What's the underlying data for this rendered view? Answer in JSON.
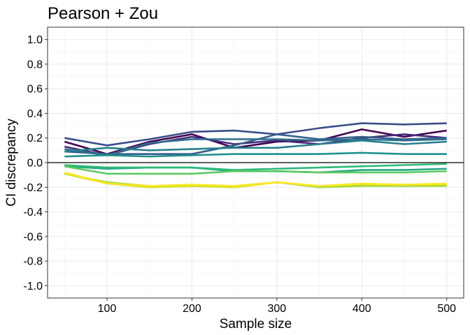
{
  "chart_data": {
    "type": "line",
    "title": "Pearson + Zou",
    "xlabel": "Sample size",
    "ylabel": "CI discrepancy",
    "xlim": [
      30,
      520
    ],
    "ylim": [
      -1.1,
      1.1
    ],
    "x_ticks": [
      100,
      200,
      300,
      400,
      500
    ],
    "x_tick_labels": [
      "100",
      "200",
      "300",
      "400",
      "500"
    ],
    "y_ticks": [
      1.0,
      0.8,
      0.6,
      0.4,
      0.2,
      0.0,
      -0.2,
      -0.4,
      -0.6,
      -0.8,
      -1.0
    ],
    "y_tick_labels": [
      "1.0",
      "0.8",
      "0.6",
      "0.4",
      "0.2",
      "0.0",
      "-0.2",
      "-0.4",
      "-0.6",
      "-0.8",
      "-1.0"
    ],
    "grid": true,
    "reference_line_y": 0,
    "x": [
      50,
      100,
      150,
      200,
      250,
      300,
      350,
      400,
      450,
      500
    ],
    "series": [
      {
        "color": "#440154",
        "values": [
          0.17,
          0.07,
          0.17,
          0.23,
          0.12,
          0.17,
          0.18,
          0.27,
          0.21,
          0.26
        ]
      },
      {
        "color": "#472c7a",
        "values": [
          0.13,
          0.06,
          0.15,
          0.21,
          0.15,
          0.18,
          0.15,
          0.2,
          0.23,
          0.2
        ]
      },
      {
        "color": "#3b4e8a",
        "values": [
          0.2,
          0.14,
          0.19,
          0.25,
          0.26,
          0.23,
          0.28,
          0.32,
          0.31,
          0.32
        ]
      },
      {
        "color": "#355f8d",
        "values": [
          0.09,
          0.07,
          0.07,
          0.07,
          0.14,
          0.23,
          0.19,
          0.21,
          0.19,
          0.2
        ]
      },
      {
        "color": "#2e6f8e",
        "values": [
          0.11,
          0.06,
          0.16,
          0.19,
          0.19,
          0.19,
          0.18,
          0.19,
          0.18,
          0.19
        ]
      },
      {
        "color": "#277f8e",
        "values": [
          0.09,
          0.12,
          0.1,
          0.11,
          0.12,
          0.12,
          0.15,
          0.18,
          0.15,
          0.17
        ]
      },
      {
        "color": "#20928c",
        "values": [
          0.05,
          0.06,
          0.05,
          0.06,
          0.07,
          0.07,
          0.07,
          0.08,
          0.07,
          0.07
        ]
      },
      {
        "color": "#22a884",
        "values": [
          -0.03,
          -0.05,
          -0.04,
          -0.04,
          -0.07,
          -0.07,
          -0.08,
          -0.06,
          -0.06,
          -0.05
        ]
      },
      {
        "color": "#2cb97a",
        "values": [
          -0.02,
          -0.04,
          -0.04,
          -0.04,
          -0.06,
          -0.05,
          -0.04,
          -0.03,
          -0.02,
          -0.01
        ]
      },
      {
        "color": "#5ec962",
        "values": [
          -0.03,
          -0.09,
          -0.09,
          -0.09,
          -0.07,
          -0.07,
          -0.08,
          -0.08,
          -0.08,
          -0.07
        ]
      },
      {
        "color": "#a0da39",
        "values": [
          -0.09,
          -0.16,
          -0.19,
          -0.18,
          -0.19,
          -0.16,
          -0.2,
          -0.19,
          -0.19,
          -0.19
        ]
      },
      {
        "color": "#cde11d",
        "values": [
          -0.09,
          -0.17,
          -0.2,
          -0.19,
          -0.2,
          -0.16,
          -0.19,
          -0.18,
          -0.18,
          -0.18
        ]
      },
      {
        "color": "#fde725",
        "values": [
          -0.08,
          -0.17,
          -0.19,
          -0.18,
          -0.19,
          -0.16,
          -0.19,
          -0.17,
          -0.18,
          -0.17
        ]
      }
    ]
  }
}
